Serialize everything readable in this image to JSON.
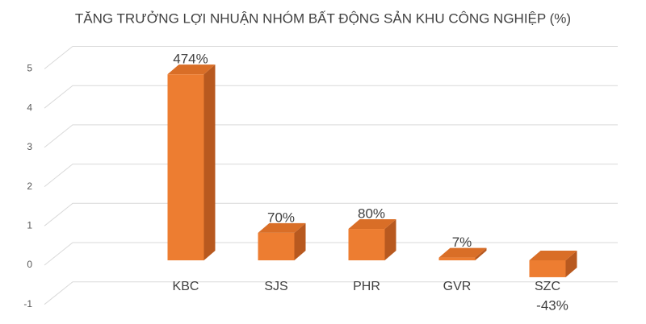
{
  "chart_data": {
    "type": "bar3d",
    "title": "TĂNG TRƯỞNG LỢI NHUẬN NHÓM BẤT ĐỘNG SẢN KHU CÔNG NGHIỆP (%)",
    "categories": [
      "KBC",
      "SJS",
      "PHR",
      "GVR",
      "SZC"
    ],
    "values": [
      4.74,
      0.7,
      0.8,
      0.07,
      -0.43
    ],
    "value_labels": [
      "474%",
      "70%",
      "80%",
      "7%",
      "-43%"
    ],
    "color": "#ed7d31",
    "ylim": [
      -1,
      5
    ],
    "yticks": [
      -1,
      0,
      1,
      2,
      3,
      4,
      5
    ],
    "grid": true
  }
}
